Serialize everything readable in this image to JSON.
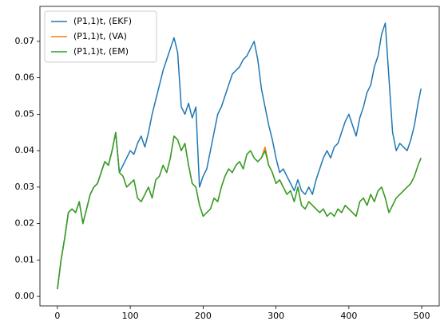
{
  "chart_data": {
    "type": "line",
    "x": [
      0,
      5,
      10,
      15,
      20,
      25,
      30,
      35,
      40,
      45,
      50,
      55,
      60,
      65,
      70,
      75,
      80,
      85,
      90,
      95,
      100,
      105,
      110,
      115,
      120,
      125,
      130,
      135,
      140,
      145,
      150,
      155,
      160,
      165,
      170,
      175,
      180,
      185,
      190,
      195,
      200,
      205,
      210,
      215,
      220,
      225,
      230,
      235,
      240,
      245,
      250,
      255,
      260,
      265,
      270,
      275,
      280,
      285,
      290,
      295,
      300,
      305,
      310,
      315,
      320,
      325,
      330,
      335,
      340,
      345,
      350,
      355,
      360,
      365,
      370,
      375,
      380,
      385,
      390,
      395,
      400,
      405,
      410,
      415,
      420,
      425,
      430,
      435,
      440,
      445,
      450,
      455,
      460,
      465,
      470,
      475,
      480,
      485,
      490,
      495,
      499
    ],
    "series": [
      {
        "name": "(P1,1)t, (EKF)",
        "color": "#1f77b4",
        "values": [
          0.002,
          0.01,
          0.016,
          0.023,
          0.024,
          0.023,
          0.026,
          0.02,
          0.024,
          0.028,
          0.03,
          0.031,
          0.034,
          0.037,
          0.036,
          0.04,
          0.045,
          0.034,
          0.036,
          0.038,
          0.04,
          0.039,
          0.042,
          0.044,
          0.041,
          0.045,
          0.05,
          0.054,
          0.058,
          0.062,
          0.065,
          0.068,
          0.071,
          0.067,
          0.052,
          0.05,
          0.053,
          0.049,
          0.052,
          0.03,
          0.033,
          0.035,
          0.04,
          0.045,
          0.05,
          0.052,
          0.055,
          0.058,
          0.061,
          0.062,
          0.063,
          0.065,
          0.066,
          0.068,
          0.07,
          0.065,
          0.057,
          0.052,
          0.047,
          0.043,
          0.038,
          0.034,
          0.035,
          0.033,
          0.031,
          0.029,
          0.032,
          0.029,
          0.028,
          0.03,
          0.028,
          0.032,
          0.035,
          0.038,
          0.04,
          0.038,
          0.041,
          0.042,
          0.045,
          0.048,
          0.05,
          0.047,
          0.044,
          0.049,
          0.052,
          0.056,
          0.058,
          0.063,
          0.066,
          0.072,
          0.075,
          0.06,
          0.045,
          0.04,
          0.042,
          0.041,
          0.04,
          0.043,
          0.047,
          0.053,
          0.057
        ]
      },
      {
        "name": "(P1,1)t, (VA)",
        "color": "#ff7f0e",
        "values": [
          0.002,
          0.01,
          0.016,
          0.023,
          0.024,
          0.023,
          0.026,
          0.02,
          0.024,
          0.028,
          0.03,
          0.031,
          0.034,
          0.037,
          0.036,
          0.04,
          0.045,
          0.034,
          0.033,
          0.03,
          0.031,
          0.032,
          0.027,
          0.026,
          0.028,
          0.03,
          0.027,
          0.032,
          0.033,
          0.036,
          0.034,
          0.038,
          0.044,
          0.043,
          0.04,
          0.042,
          0.036,
          0.031,
          0.03,
          0.025,
          0.022,
          0.023,
          0.024,
          0.027,
          0.026,
          0.03,
          0.033,
          0.035,
          0.034,
          0.036,
          0.037,
          0.035,
          0.039,
          0.04,
          0.038,
          0.037,
          0.038,
          0.041,
          0.036,
          0.034,
          0.031,
          0.032,
          0.03,
          0.028,
          0.029,
          0.026,
          0.03,
          0.025,
          0.024,
          0.026,
          0.025,
          0.024,
          0.023,
          0.024,
          0.022,
          0.023,
          0.022,
          0.024,
          0.023,
          0.025,
          0.024,
          0.023,
          0.022,
          0.026,
          0.027,
          0.025,
          0.028,
          0.026,
          0.029,
          0.03,
          0.027,
          0.023,
          0.025,
          0.027,
          0.028,
          0.029,
          0.03,
          0.031,
          0.033,
          0.036,
          0.038
        ]
      },
      {
        "name": "(P1,1)t, (EM)",
        "color": "#2ca02c",
        "values": [
          0.002,
          0.01,
          0.016,
          0.023,
          0.024,
          0.023,
          0.026,
          0.02,
          0.024,
          0.028,
          0.03,
          0.031,
          0.034,
          0.037,
          0.036,
          0.04,
          0.045,
          0.034,
          0.033,
          0.03,
          0.031,
          0.032,
          0.027,
          0.026,
          0.028,
          0.03,
          0.027,
          0.032,
          0.033,
          0.036,
          0.034,
          0.038,
          0.044,
          0.043,
          0.04,
          0.042,
          0.036,
          0.031,
          0.03,
          0.025,
          0.022,
          0.023,
          0.024,
          0.027,
          0.026,
          0.03,
          0.033,
          0.035,
          0.034,
          0.036,
          0.037,
          0.035,
          0.039,
          0.04,
          0.038,
          0.037,
          0.038,
          0.04,
          0.036,
          0.034,
          0.031,
          0.032,
          0.03,
          0.028,
          0.029,
          0.026,
          0.03,
          0.025,
          0.024,
          0.026,
          0.025,
          0.024,
          0.023,
          0.024,
          0.022,
          0.023,
          0.022,
          0.024,
          0.023,
          0.025,
          0.024,
          0.023,
          0.022,
          0.026,
          0.027,
          0.025,
          0.028,
          0.026,
          0.029,
          0.03,
          0.027,
          0.023,
          0.025,
          0.027,
          0.028,
          0.029,
          0.03,
          0.031,
          0.033,
          0.036,
          0.038
        ]
      }
    ],
    "xlim": [
      -24,
      524
    ],
    "ylim": [
      -0.0026,
      0.0796
    ],
    "xticks": [
      0,
      100,
      200,
      300,
      400,
      500
    ],
    "yticks": [
      {
        "value": 0,
        "label": "0.00"
      },
      0.01,
      0.02,
      0.03,
      0.04,
      0.05,
      0.06,
      0.07
    ],
    "legend": "upper left"
  }
}
